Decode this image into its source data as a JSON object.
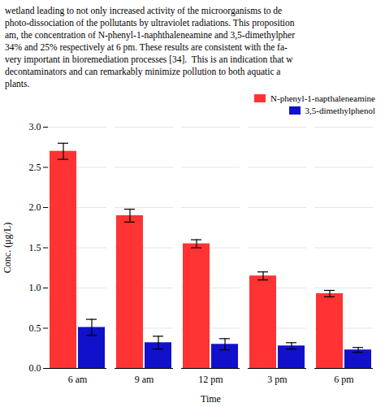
{
  "chart_data": {
    "type": "bar",
    "annotations": [
      "wetland leading to not only increased activity of the microorganisms to de",
      "photo-dissociation of the pollutants by ultraviolet radiations. This proposition",
      "am, the concentration of N-phenyl-1-naphthaleneamine and 3,5-dimethylpher",
      "34% and 25% respectively at 6 pm. These results are consistent with the fa-",
      "very important in bioremediation processes [34].  This is an indication that w",
      "decontaminators and can remarkably minimize pollution to both aquatic a",
      "plants."
    ],
    "xlabel": "Time",
    "ylabel": "Conc. (μg/L)",
    "categories": [
      "6 am",
      "9 am",
      "12 pm",
      "3 pm",
      "6 pm"
    ],
    "series": [
      {
        "name": "N-phenyl-1-napthaleneamine",
        "color": "#FF3333",
        "values": [
          2.7,
          1.9,
          1.55,
          1.15,
          0.93
        ],
        "errors": [
          0.1,
          0.08,
          0.05,
          0.05,
          0.04
        ]
      },
      {
        "name": "3,5-dimethylphenol",
        "color": "#1111CC",
        "values": [
          0.51,
          0.32,
          0.3,
          0.28,
          0.23
        ],
        "errors": [
          0.1,
          0.08,
          0.07,
          0.04,
          0.03
        ]
      }
    ],
    "ylim": [
      0.0,
      3.0
    ],
    "yticks": [
      {
        "value": 0.0,
        "label": "0.0"
      },
      0.5,
      {
        "value": 1.0,
        "label": "1.0"
      },
      1.5,
      {
        "value": 2.0,
        "label": "2.0"
      },
      2.5,
      {
        "value": 3.0,
        "label": "3.0"
      }
    ],
    "grid": true,
    "legend": "upper right"
  }
}
